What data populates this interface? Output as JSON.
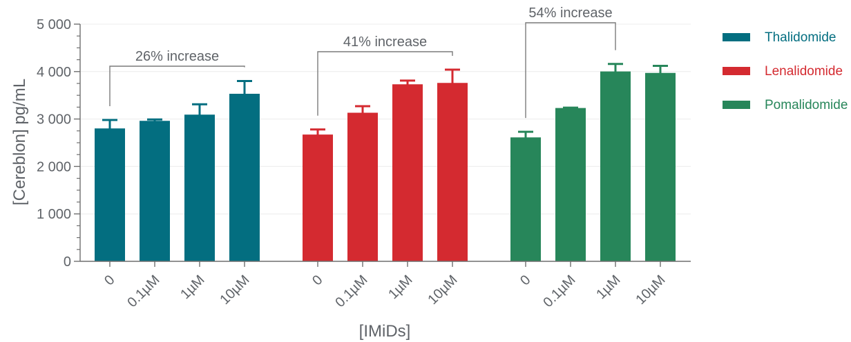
{
  "chart_data": {
    "type": "bar",
    "ylabel": "[Cereblon] pg/mL",
    "xlabel": "[IMiDs]",
    "ylim": [
      0,
      5000
    ],
    "yticks": [
      0,
      1000,
      2000,
      3000,
      4000,
      5000
    ],
    "ytick_labels": [
      "0",
      "1 000",
      "2 000",
      "3 000",
      "4 000",
      "5 000"
    ],
    "grid": "horizontal",
    "legend_position": "right",
    "categories": [
      "0",
      "0.1µM",
      "1µM",
      "10µM"
    ],
    "series": [
      {
        "name": "Thalidomide",
        "color": "#036e80",
        "values": [
          2780,
          2940,
          3070,
          3510
        ],
        "errors": [
          200,
          50,
          240,
          290
        ]
      },
      {
        "name": "Lenalidomide",
        "color": "#d42a30",
        "values": [
          2650,
          3110,
          3710,
          3740
        ],
        "errors": [
          130,
          160,
          100,
          300
        ]
      },
      {
        "name": "Pomalidomide",
        "color": "#27865a",
        "values": [
          2590,
          3210,
          3980,
          3950
        ],
        "errors": [
          140,
          30,
          180,
          170
        ]
      }
    ],
    "annotations": [
      "26% increase",
      "41% increase",
      "54% increase"
    ]
  }
}
